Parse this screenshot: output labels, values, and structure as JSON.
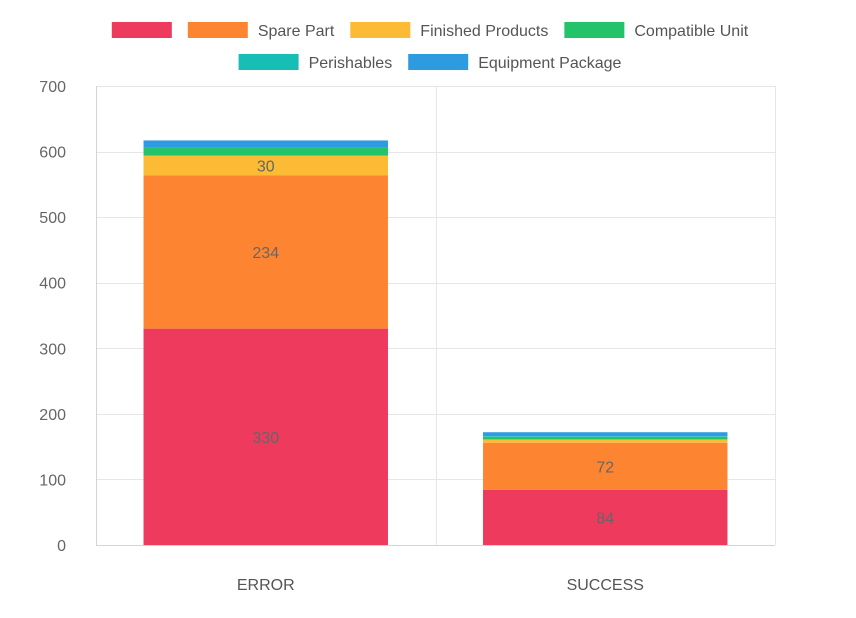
{
  "chart_data": {
    "type": "bar",
    "stacked": true,
    "categories": [
      "ERROR",
      "SUCCESS"
    ],
    "series": [
      {
        "name": "",
        "color": "#EE3A5C",
        "values": [
          330,
          84
        ]
      },
      {
        "name": "Spare Part",
        "color": "#FD8532",
        "values": [
          234,
          72
        ]
      },
      {
        "name": "Finished Products",
        "color": "#FBBB35",
        "values": [
          30,
          5
        ]
      },
      {
        "name": "Compatible Unit",
        "color": "#23C26B",
        "values": [
          12,
          4
        ]
      },
      {
        "name": "Perishables",
        "color": "#17BEB5",
        "values": [
          0,
          1
        ]
      },
      {
        "name": "Equipment Package",
        "color": "#2E9BE0",
        "values": [
          11,
          6
        ]
      }
    ],
    "data_labels": [
      [
        "330",
        "84"
      ],
      [
        "234",
        "72"
      ],
      [
        "30",
        ""
      ],
      [
        "",
        ""
      ],
      [
        "",
        ""
      ],
      [
        "",
        ""
      ]
    ],
    "y_ticks": [
      "0",
      "100",
      "200",
      "300",
      "400",
      "500",
      "600",
      "700"
    ],
    "ylim": [
      0,
      700
    ],
    "grid": true,
    "legend_position": "top-center"
  }
}
